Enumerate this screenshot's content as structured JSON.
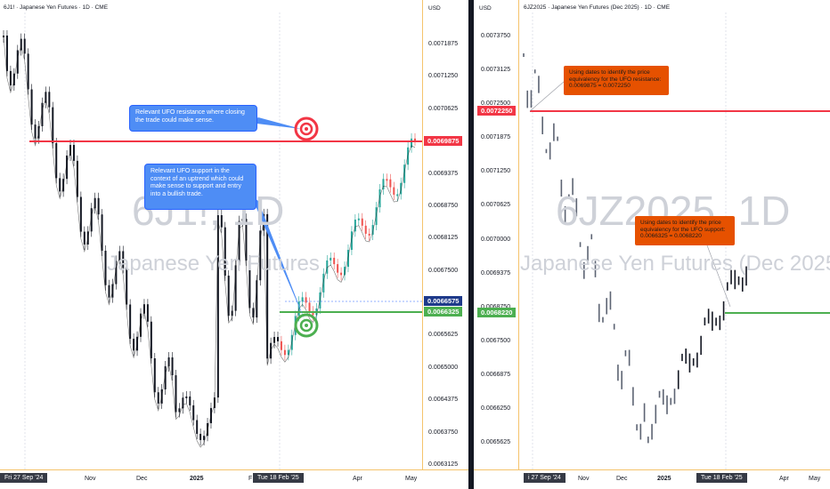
{
  "left": {
    "title": "6J1! · Japanese Yen Futures · 1D · CME",
    "currency": "USD",
    "watermark_symbol": "6J1!, 1D",
    "watermark_name": "Japanese Yen Futures",
    "price_labels": [
      "0.0071875",
      "0.0071250",
      "0.0070625",
      "0.0070000",
      "0.0069375",
      "0.0068750",
      "0.0068125",
      "0.0067500",
      "0.0066875",
      "0.0065625",
      "0.0065000",
      "0.0064375",
      "0.0063750",
      "0.0063125"
    ],
    "resistance_price": "0.0069875",
    "current_price": "0.0066575",
    "support_price": "0.0066325",
    "date_start": "Fri 27 Sep '24",
    "date_labels": [
      "Nov",
      "Dec",
      "2025",
      "F",
      "Apr",
      "May"
    ],
    "date_cursor": "Tue 18 Feb '25",
    "note_resistance": "Relevant UFO resistance where closing the trade could make sense.",
    "note_support": "Relevant UFO support in the context of an uptrend which could make sense to support and entry into a bullish trade."
  },
  "right": {
    "title": "6JZ2025 · Japanese Yen Futures (Dec 2025) · 1D · CME",
    "currency": "USD",
    "watermark_symbol": "6JZ2025, 1D",
    "watermark_name": "Japanese Yen Futures (Dec 2025)",
    "price_labels": [
      "0.0073750",
      "0.0073125",
      "0.0072500",
      "0.0071875",
      "0.0071250",
      "0.0070625",
      "0.0070000",
      "0.0069375",
      "0.0068750",
      "0.0067500",
      "0.0066875",
      "0.0066250",
      "0.0065625"
    ],
    "resistance_price": "0.0072250",
    "support_price": "0.0068220",
    "date_start": "i 27 Sep '24",
    "date_labels": [
      "Nov",
      "Dec",
      "2025",
      "Apr",
      "May"
    ],
    "date_cursor": "Tue 18 Feb '25",
    "note_resistance": "Using dates to identify the price equivalency for the UFO resistance: 0.0069875 = 0.0072250",
    "note_support": "Using dates to identify the price equivalency for the UFO support: 0.0066325 = 0.0068220"
  },
  "colors": {
    "resistance": "#f23645",
    "support": "#4caf50",
    "current": "#2962ff",
    "up": "#26a69a",
    "down": "#ef5350"
  }
}
